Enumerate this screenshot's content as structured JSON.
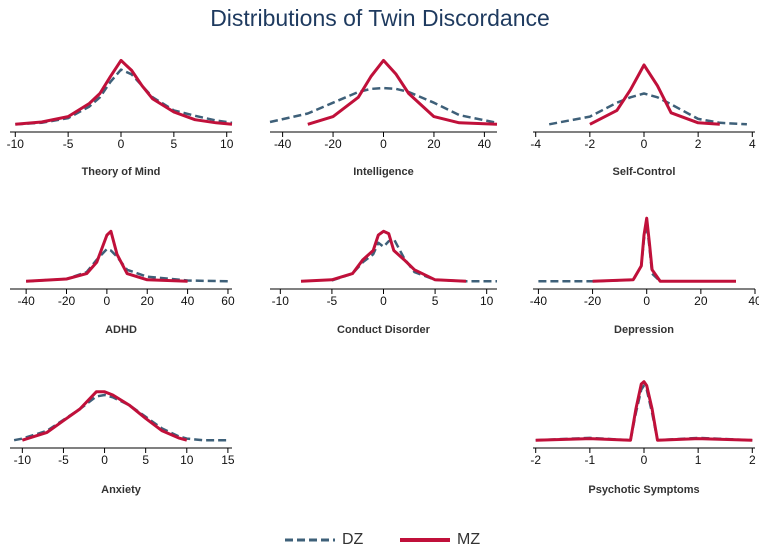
{
  "title": "Distributions of Twin Discordance",
  "chart_data": [
    {
      "type": "line",
      "xlabel": "Theory of Mind",
      "xlim": [
        -10.5,
        10.5
      ],
      "xticks": [
        -10,
        -5,
        0,
        5,
        10
      ],
      "ylim": [
        0,
        1
      ],
      "x": [
        -10,
        -7.5,
        -5,
        -3,
        -2,
        -1,
        0,
        1,
        2,
        3,
        5,
        7,
        9,
        10.5
      ],
      "series": [
        {
          "name": "DZ",
          "color": "#3e6079",
          "dash": true,
          "values": [
            0.1,
            0.12,
            0.18,
            0.33,
            0.45,
            0.65,
            0.81,
            0.75,
            0.6,
            0.45,
            0.28,
            0.21,
            0.15,
            0.12
          ]
        },
        {
          "name": "MZ",
          "color": "#c0103a",
          "dash": false,
          "values": [
            0.1,
            0.13,
            0.2,
            0.37,
            0.5,
            0.72,
            0.93,
            0.8,
            0.6,
            0.43,
            0.26,
            0.16,
            0.12,
            0.1
          ]
        }
      ]
    },
    {
      "type": "line",
      "xlabel": "Intelligence",
      "xlim": [
        -45,
        45
      ],
      "xticks": [
        -40,
        -20,
        0,
        20,
        40
      ],
      "ylim": [
        0,
        1
      ],
      "x": [
        -45,
        -30,
        -20,
        -10,
        -5,
        0,
        5,
        10,
        20,
        30,
        45
      ],
      "series": [
        {
          "name": "DZ",
          "color": "#3e6079",
          "dash": true,
          "values": [
            0.13,
            0.24,
            0.38,
            0.52,
            0.56,
            0.57,
            0.56,
            0.52,
            0.38,
            0.22,
            0.12
          ]
        },
        {
          "name": "MZ",
          "color": "#c0103a",
          "dash": false,
          "values": [
            null,
            0.1,
            0.2,
            0.45,
            0.72,
            0.93,
            0.75,
            0.5,
            0.2,
            0.12,
            0.1
          ]
        }
      ]
    },
    {
      "type": "line",
      "xlabel": "Self-Control",
      "xlim": [
        -4.1,
        4.1
      ],
      "xticks": [
        -4,
        -2,
        0,
        2,
        4
      ],
      "ylim": [
        0,
        1
      ],
      "x": [
        -3.5,
        -2,
        -1,
        -0.5,
        0,
        0.5,
        1,
        2,
        2.8,
        3.8
      ],
      "series": [
        {
          "name": "DZ",
          "color": "#3e6079",
          "dash": true,
          "values": [
            0.1,
            0.2,
            0.38,
            0.45,
            0.5,
            0.45,
            0.36,
            0.17,
            0.12,
            0.1
          ]
        },
        {
          "name": "MZ",
          "color": "#c0103a",
          "dash": false,
          "values": [
            null,
            0.1,
            0.28,
            0.55,
            0.87,
            0.6,
            0.25,
            0.12,
            0.1,
            null
          ]
        }
      ]
    },
    {
      "type": "line",
      "xlabel": "ADHD",
      "xlim": [
        -48,
        62
      ],
      "xticks": [
        -40,
        -20,
        0,
        20,
        40,
        60
      ],
      "ylim": [
        0,
        1
      ],
      "x": [
        -40,
        -20,
        -10,
        -5,
        0,
        2,
        5,
        10,
        20,
        40,
        60
      ],
      "series": [
        {
          "name": "DZ",
          "color": "#3e6079",
          "dash": true,
          "values": [
            0.1,
            0.13,
            0.22,
            0.38,
            0.52,
            0.5,
            0.42,
            0.25,
            0.16,
            0.11,
            0.1
          ]
        },
        {
          "name": "MZ",
          "color": "#c0103a",
          "dash": false,
          "values": [
            0.1,
            0.13,
            0.2,
            0.35,
            0.7,
            0.75,
            0.45,
            0.2,
            0.12,
            0.1,
            null
          ]
        }
      ]
    },
    {
      "type": "line",
      "xlabel": "Conduct Disorder",
      "xlim": [
        -11,
        11
      ],
      "xticks": [
        -10,
        -5,
        0,
        5,
        10
      ],
      "ylim": [
        0,
        1
      ],
      "x": [
        -8,
        -5,
        -3,
        -2,
        -1,
        -0.5,
        0,
        0.5,
        1,
        2,
        3,
        5,
        8,
        11
      ],
      "series": [
        {
          "name": "DZ",
          "color": "#3e6079",
          "dash": true,
          "values": [
            null,
            0.11,
            0.2,
            0.35,
            0.45,
            0.6,
            0.55,
            0.62,
            0.65,
            0.4,
            0.22,
            0.12,
            0.1,
            0.1
          ]
        },
        {
          "name": "MZ",
          "color": "#c0103a",
          "dash": false,
          "values": [
            0.1,
            0.12,
            0.2,
            0.38,
            0.5,
            0.7,
            0.75,
            0.72,
            0.5,
            0.38,
            0.25,
            0.12,
            0.1,
            null
          ]
        }
      ]
    },
    {
      "type": "line",
      "xlabel": "Depression",
      "xlim": [
        -42,
        40
      ],
      "xticks": [
        -40,
        -20,
        0,
        20,
        40
      ],
      "ylim": [
        0,
        1
      ],
      "x": [
        -40,
        -20,
        -5,
        -2,
        -1,
        0,
        1,
        2,
        5,
        20,
        33
      ],
      "series": [
        {
          "name": "DZ",
          "color": "#3e6079",
          "dash": true,
          "values": [
            0.1,
            0.1,
            0.12,
            0.3,
            0.65,
            0.85,
            0.55,
            0.2,
            0.1,
            0.1,
            null
          ]
        },
        {
          "name": "MZ",
          "color": "#c0103a",
          "dash": false,
          "values": [
            null,
            0.1,
            0.12,
            0.3,
            0.7,
            0.92,
            0.6,
            0.25,
            0.1,
            0.1,
            0.1
          ]
        }
      ]
    },
    {
      "type": "line",
      "xlabel": "Anxiety",
      "xlim": [
        -11.5,
        15.5
      ],
      "xticks": [
        -10,
        -5,
        0,
        5,
        10,
        15
      ],
      "ylim": [
        0,
        1
      ],
      "x": [
        -11,
        -10,
        -7,
        -5,
        -3,
        -1,
        0,
        1,
        3,
        5,
        7,
        9,
        10,
        12,
        15
      ],
      "series": [
        {
          "name": "DZ",
          "color": "#3e6079",
          "dash": true,
          "values": [
            0.1,
            0.12,
            0.22,
            0.36,
            0.5,
            0.66,
            0.68,
            0.65,
            0.55,
            0.4,
            0.25,
            0.15,
            0.12,
            0.1,
            0.1
          ]
        },
        {
          "name": "MZ",
          "color": "#c0103a",
          "dash": false,
          "values": [
            null,
            0.1,
            0.2,
            0.35,
            0.5,
            0.72,
            0.72,
            0.68,
            0.55,
            0.38,
            0.22,
            0.13,
            0.1,
            null,
            null
          ]
        }
      ]
    },
    {
      "type": "line",
      "xlabel": "Psychotic Symptoms",
      "xlim": [
        -2.05,
        2.05
      ],
      "xticks": [
        -2,
        -1,
        0,
        1,
        2
      ],
      "ylim": [
        0,
        1
      ],
      "x": [
        -2,
        -1,
        -0.25,
        -0.15,
        -0.05,
        0,
        0.05,
        0.15,
        0.25,
        1,
        2
      ],
      "series": [
        {
          "name": "DZ",
          "color": "#3e6079",
          "dash": true,
          "values": [
            0.1,
            0.13,
            0.1,
            0.45,
            0.75,
            0.8,
            0.75,
            0.45,
            0.1,
            0.13,
            0.1
          ]
        },
        {
          "name": "MZ",
          "color": "#c0103a",
          "dash": false,
          "values": [
            0.1,
            0.12,
            0.1,
            0.5,
            0.82,
            0.85,
            0.8,
            0.5,
            0.1,
            0.12,
            0.1
          ]
        }
      ]
    }
  ]
}
